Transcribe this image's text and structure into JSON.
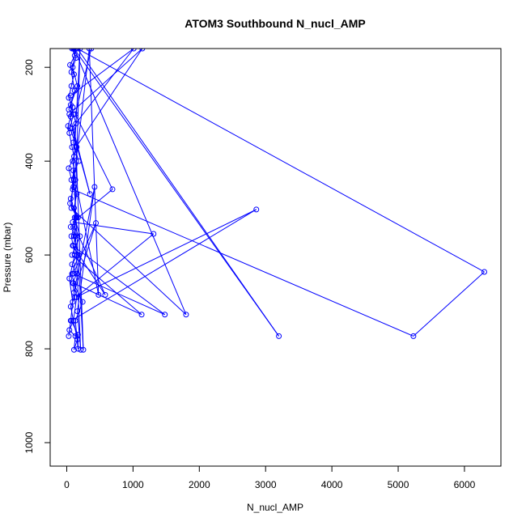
{
  "chart_data": {
    "type": "line",
    "title": "ATOM3 Southbound N_nucl_AMP",
    "xlabel": "N_nucl_AMP",
    "ylabel": "Pressure (mbar)",
    "xlim": [
      -250,
      6550
    ],
    "ylim": [
      1050,
      160
    ],
    "y_reversed": true,
    "xticks": [
      0,
      1000,
      2000,
      3000,
      4000,
      5000,
      6000
    ],
    "yticks": [
      200,
      400,
      600,
      800,
      1000
    ],
    "grid": false,
    "color": "#0000ff",
    "marker": "open-circle",
    "series": [
      {
        "points": [
          [
            30,
            773
          ],
          [
            60,
            740
          ],
          [
            90,
            700
          ],
          [
            40,
            650
          ],
          [
            120,
            600
          ],
          [
            70,
            560
          ],
          [
            150,
            520
          ],
          [
            50,
            490
          ],
          [
            100,
            455
          ],
          [
            30,
            415
          ],
          [
            110,
            390
          ],
          [
            80,
            370
          ],
          [
            40,
            340
          ],
          [
            20,
            325
          ],
          [
            60,
            305
          ],
          [
            90,
            285
          ],
          [
            30,
            265
          ],
          [
            70,
            240
          ],
          [
            110,
            215
          ],
          [
            50,
            195
          ],
          [
            120,
            175
          ],
          [
            80,
            160
          ],
          [
            130,
            160
          ],
          [
            90,
            200
          ],
          [
            160,
            240
          ],
          [
            60,
            280
          ],
          [
            140,
            320
          ],
          [
            100,
            360
          ],
          [
            180,
            400
          ],
          [
            70,
            440
          ],
          [
            150,
            470
          ],
          [
            110,
            500
          ],
          [
            170,
            520
          ],
          [
            60,
            540
          ],
          [
            130,
            560
          ],
          [
            100,
            580
          ],
          [
            160,
            600
          ],
          [
            80,
            620
          ],
          [
            150,
            640
          ],
          [
            90,
            660
          ],
          [
            120,
            690
          ],
          [
            60,
            710
          ],
          [
            100,
            740
          ],
          [
            40,
            760
          ],
          [
            130,
            773
          ],
          [
            110,
            802
          ],
          [
            160,
            780
          ],
          [
            100,
            740
          ],
          [
            150,
            690
          ],
          [
            80,
            640
          ],
          [
            180,
            600
          ],
          [
            110,
            560
          ],
          [
            140,
            520
          ],
          [
            60,
            480
          ],
          [
            130,
            440
          ],
          [
            90,
            400
          ],
          [
            150,
            370
          ],
          [
            50,
            330
          ],
          [
            100,
            300
          ],
          [
            30,
            290
          ],
          [
            120,
            250
          ],
          [
            70,
            210
          ],
          [
            140,
            180
          ],
          [
            100,
            160
          ],
          [
            370,
            160
          ],
          [
            130,
            300
          ],
          [
            690,
            460
          ],
          [
            90,
            530
          ],
          [
            1310,
            555
          ],
          [
            140,
            690
          ],
          [
            2860,
            503
          ],
          [
            70,
            740
          ],
          [
            170,
            770
          ],
          [
            170,
            800
          ],
          [
            130,
            740
          ],
          [
            240,
            700
          ],
          [
            100,
            660
          ],
          [
            1130,
            727
          ],
          [
            80,
            600
          ],
          [
            200,
            560
          ],
          [
            120,
            520
          ],
          [
            210,
            802
          ],
          [
            160,
            720
          ],
          [
            420,
            455
          ],
          [
            110,
            680
          ],
          [
            440,
            532
          ],
          [
            100,
            640
          ],
          [
            1480,
            727
          ],
          [
            90,
            580
          ],
          [
            580,
            685
          ],
          [
            120,
            540
          ],
          [
            200,
            160
          ],
          [
            70,
            500
          ],
          [
            1800,
            727
          ],
          [
            110,
            160
          ],
          [
            3200,
            773
          ],
          [
            160,
            160
          ],
          [
            6300,
            636
          ],
          [
            5230,
            773
          ],
          [
            90,
            460
          ],
          [
            340,
            160
          ],
          [
            480,
            685
          ],
          [
            100,
            420
          ],
          [
            250,
            802
          ],
          [
            140,
            370
          ],
          [
            1140,
            160
          ],
          [
            40,
            300
          ],
          [
            350,
            470
          ],
          [
            80,
            330
          ],
          [
            1010,
            160
          ],
          [
            60,
            260
          ]
        ]
      }
    ]
  }
}
